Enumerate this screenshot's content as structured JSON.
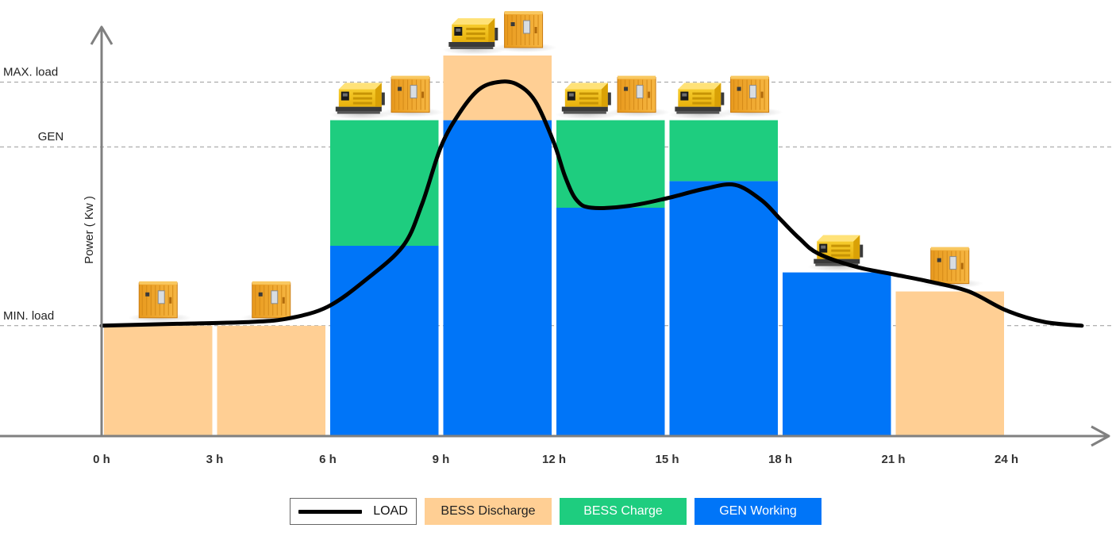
{
  "chart_data": {
    "type": "bar",
    "title": "",
    "xlabel": "",
    "ylabel": "Power ( Kw )",
    "x_ticks": [
      "0 h",
      "3 h",
      "6 h",
      "9 h",
      "12 h",
      "15 h",
      "18 h",
      "21 h",
      "24 h"
    ],
    "x_range": [
      0,
      26
    ],
    "y_range": [
      0,
      100
    ],
    "grid": false,
    "legend_position": "bottom",
    "levels": [
      {
        "name": "MAX. load",
        "value": 93
      },
      {
        "name": "GEN",
        "value": 76
      },
      {
        "name": "MIN. load",
        "value": 29
      }
    ],
    "periods": [
      {
        "start": 0,
        "end": 3,
        "gen_working": 0,
        "bess_charge": 0,
        "bess_discharge": 29,
        "units": [
          "battery"
        ]
      },
      {
        "start": 3,
        "end": 6,
        "gen_working": 0,
        "bess_charge": 0,
        "bess_discharge": 29,
        "units": [
          "battery"
        ]
      },
      {
        "start": 6,
        "end": 9,
        "gen_working": 50,
        "bess_charge": 33,
        "bess_discharge": 0,
        "units": [
          "generator",
          "battery"
        ]
      },
      {
        "start": 9,
        "end": 12,
        "gen_working": 83,
        "bess_charge": 0,
        "bess_discharge": 17,
        "units": [
          "generator",
          "battery"
        ]
      },
      {
        "start": 12,
        "end": 15,
        "gen_working": 60,
        "bess_charge": 23,
        "bess_discharge": 0,
        "units": [
          "generator",
          "battery"
        ]
      },
      {
        "start": 15,
        "end": 18,
        "gen_working": 67,
        "bess_charge": 16,
        "bess_discharge": 0,
        "units": [
          "generator",
          "battery"
        ]
      },
      {
        "start": 18,
        "end": 21,
        "gen_working": 43,
        "bess_charge": 0,
        "bess_discharge": 0,
        "units": [
          "generator"
        ]
      },
      {
        "start": 21,
        "end": 24,
        "gen_working": 0,
        "bess_charge": 0,
        "bess_discharge": 38,
        "units": [
          "battery"
        ]
      }
    ],
    "series": [
      {
        "name": "LOAD",
        "type": "line",
        "x": [
          0,
          2,
          4,
          5,
          6,
          7,
          8,
          8.5,
          9,
          9.5,
          10,
          10.5,
          11,
          11.5,
          12,
          12.3,
          12.6,
          13,
          14,
          15,
          16,
          16.8,
          17.5,
          18,
          18.5,
          19,
          20,
          21,
          22,
          23,
          24,
          25,
          26
        ],
        "values": [
          29,
          29.5,
          30,
          31,
          34,
          41,
          50,
          61,
          76,
          85,
          91,
          93,
          92.5,
          88,
          77,
          68,
          62,
          60,
          60.5,
          62.5,
          65,
          66,
          62,
          57,
          52,
          48,
          44.5,
          42.5,
          40.5,
          38,
          33,
          30,
          29
        ]
      }
    ],
    "legend": [
      {
        "key": "load",
        "label": "LOAD"
      },
      {
        "key": "bess_discharge",
        "label": "BESS Discharge",
        "color": "#ffcf94"
      },
      {
        "key": "bess_charge",
        "label": "BESS Charge",
        "color": "#1ecd7f"
      },
      {
        "key": "gen_working",
        "label": "GEN Working",
        "color": "#0075f8"
      }
    ],
    "colors": {
      "bess_discharge": "#ffcf94",
      "bess_charge": "#1ecd7f",
      "gen_working": "#0075f8",
      "load_line": "#000000",
      "axis": "#808080",
      "unit_yellow": "#f5c518",
      "unit_orange": "#f2a92a"
    },
    "icons": {
      "generator": "diesel-generator-icon",
      "battery": "battery-container-icon"
    }
  }
}
